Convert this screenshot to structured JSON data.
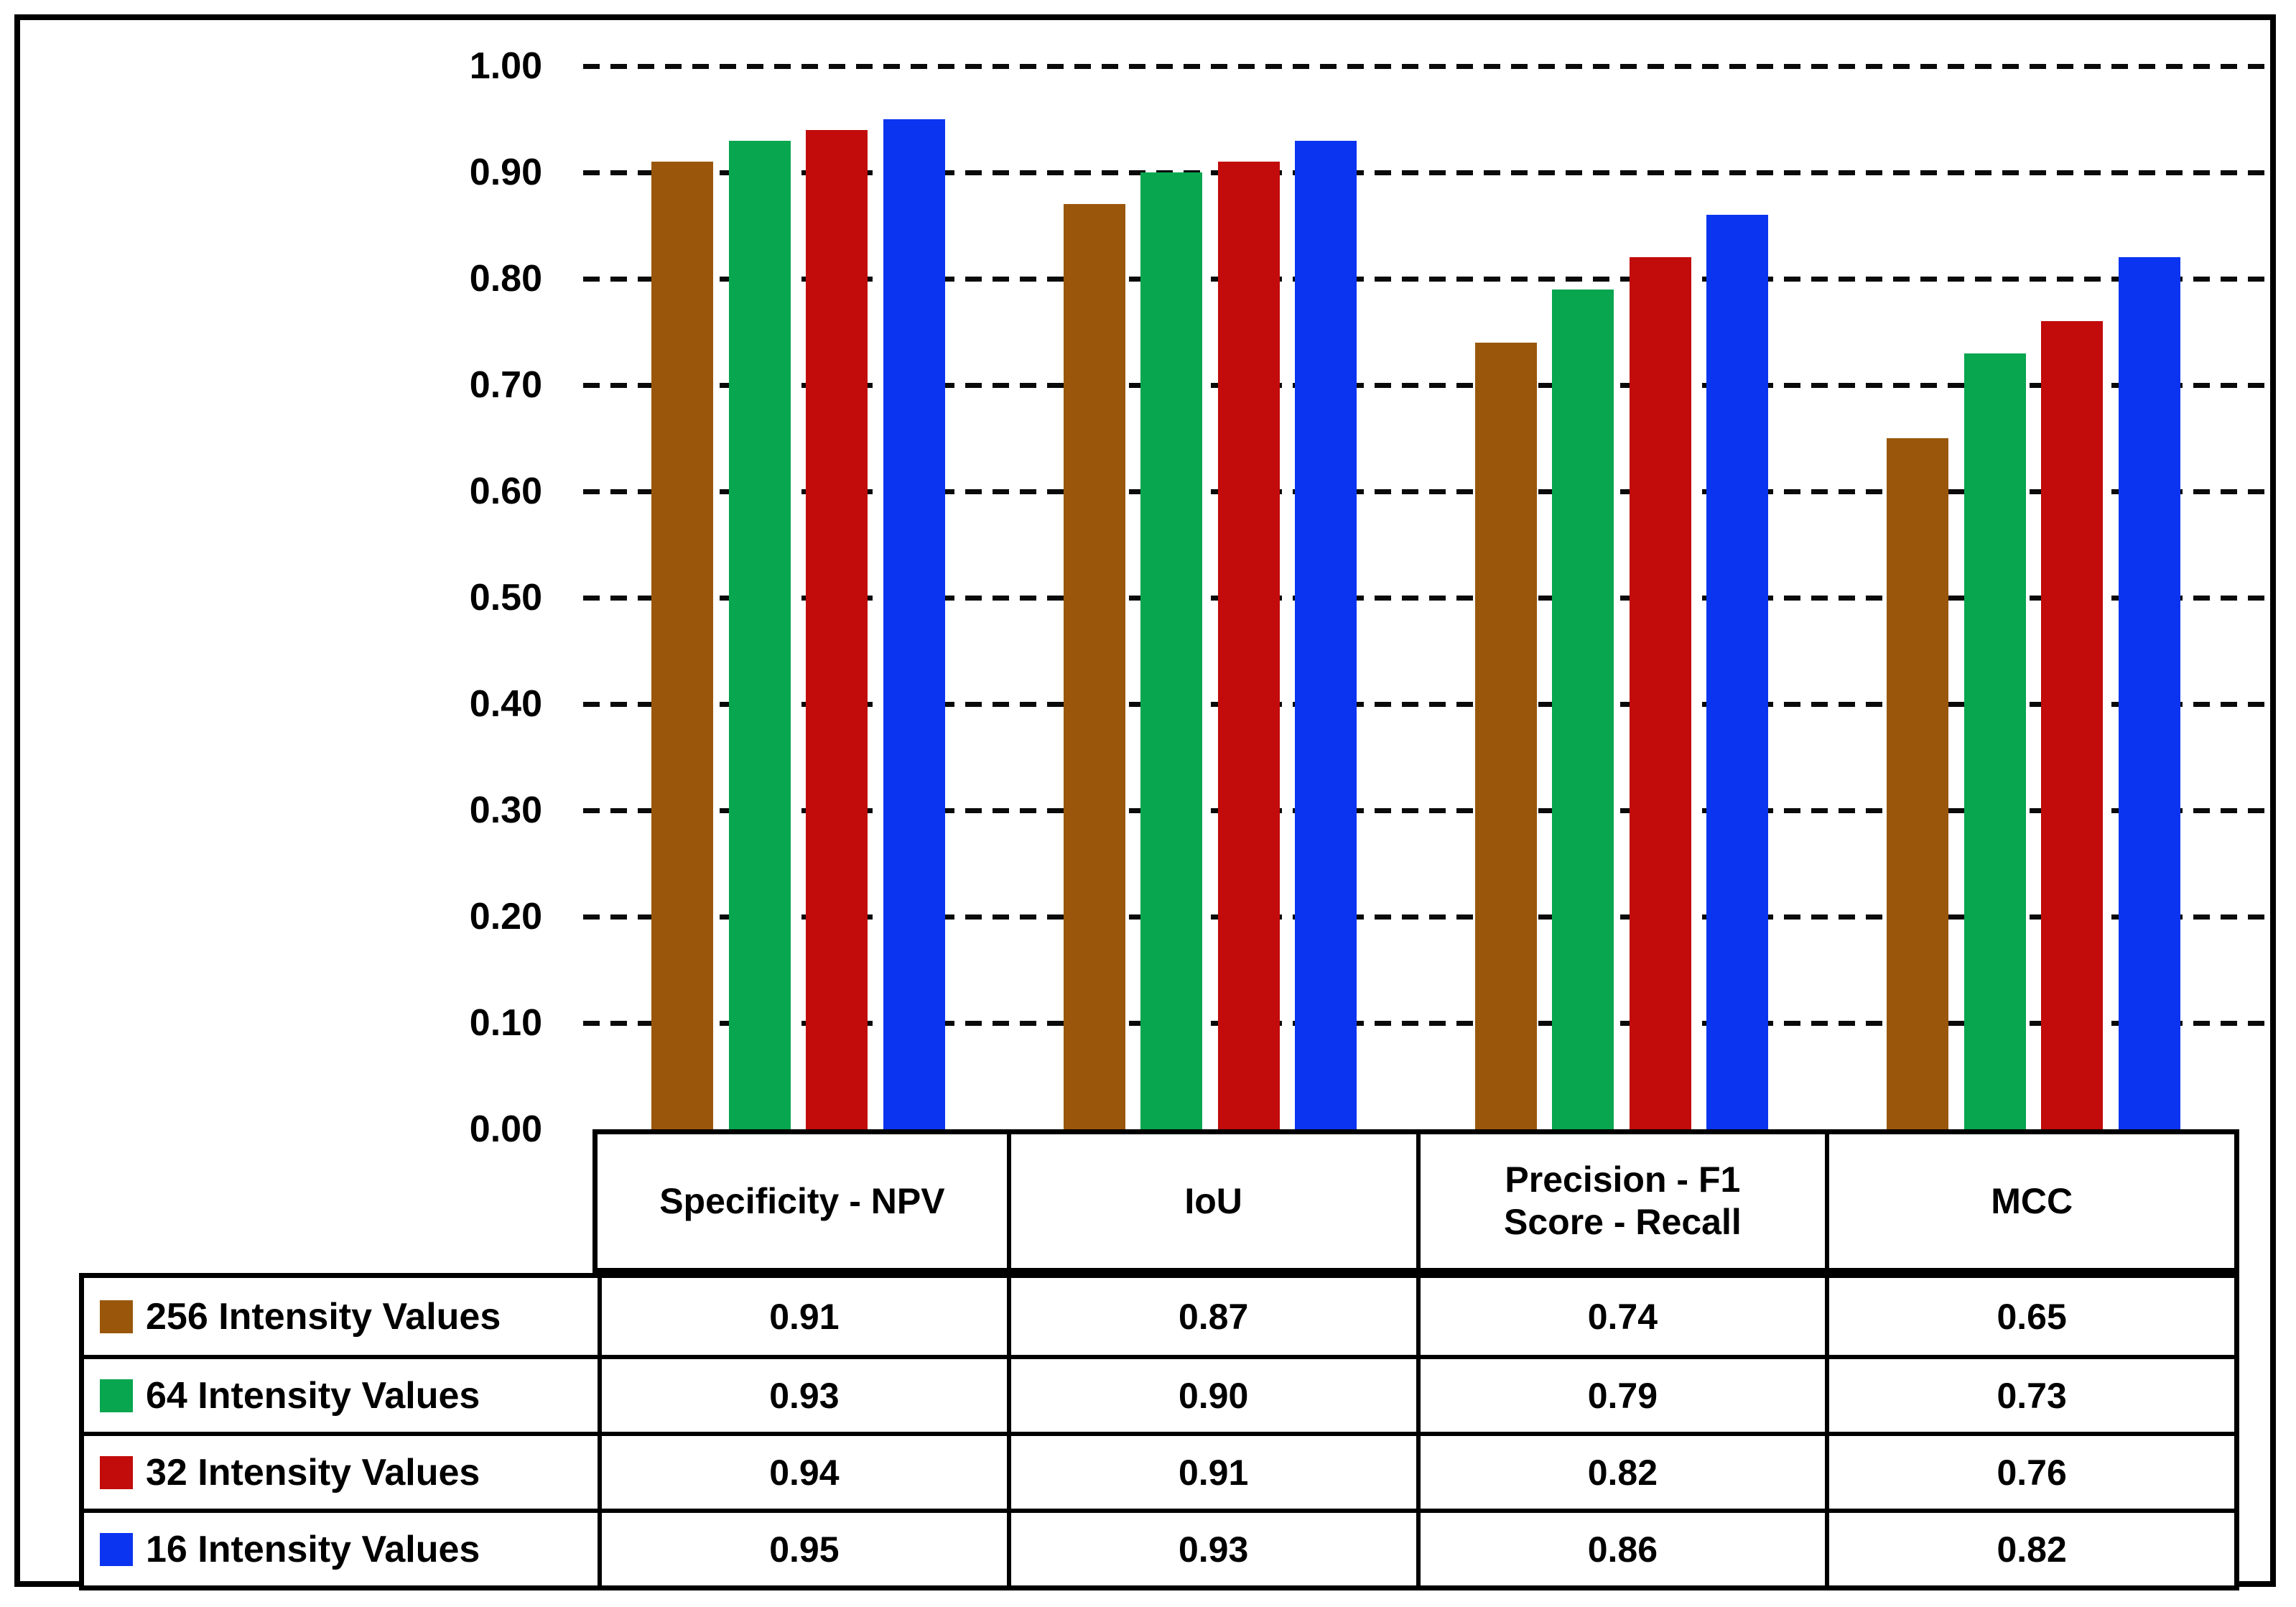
{
  "figure": {
    "background_color": "#ffffff",
    "frame_color": "#000000",
    "text_color": "#000000"
  },
  "chart_data": {
    "type": "bar",
    "title": "",
    "categories": [
      "Specificity - NPV",
      "IoU",
      "Precision - F1\nScore - Recall",
      "MCC"
    ],
    "series": [
      {
        "name": "256 Intensity Values",
        "color": "#9A570B",
        "values": [
          0.91,
          0.87,
          0.74,
          0.65
        ]
      },
      {
        "name": "64 Intensity Values",
        "color": "#07A64F",
        "values": [
          0.93,
          0.9,
          0.79,
          0.73
        ]
      },
      {
        "name": "32 Intensity Values",
        "color": "#C20B0B",
        "values": [
          0.94,
          0.91,
          0.82,
          0.76
        ]
      },
      {
        "name": "16 Intensity Values",
        "color": "#0B34F0",
        "values": [
          0.95,
          0.93,
          0.86,
          0.82
        ]
      }
    ],
    "ylim": [
      0.0,
      1.0
    ],
    "ytick_step": 0.1,
    "ytick_labels": [
      "1.00",
      "0.90",
      "0.80",
      "0.70",
      "0.60",
      "0.50",
      "0.40",
      "0.30",
      "0.20",
      "0.10",
      "0.00"
    ],
    "grid": "horizontal-dashed",
    "gridline_color": "#0a0a0a",
    "legend_position": "table-left-column",
    "value_format": "0.00",
    "xlabel": "",
    "ylabel": ""
  }
}
